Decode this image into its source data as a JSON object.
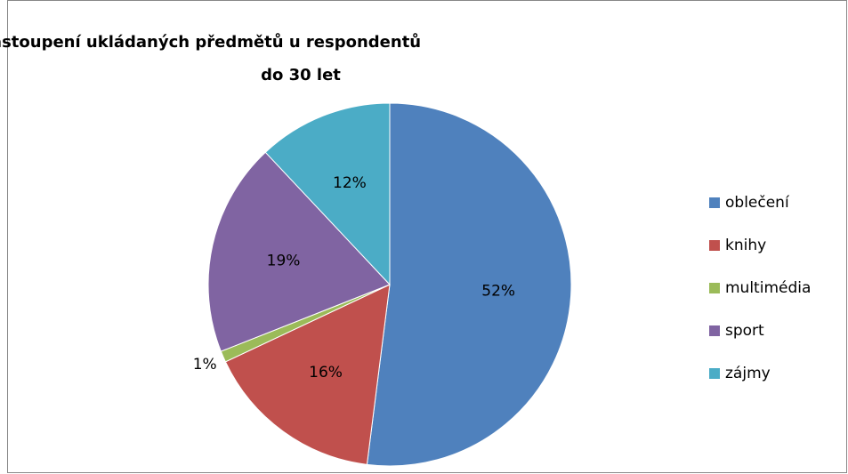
{
  "chart_data": {
    "type": "pie",
    "title": [
      "Zastoupení ukládaných předmětů u respondentů",
      "do 30 let"
    ],
    "categories": [
      "oblečení",
      "knihy",
      "multimédia",
      "sport",
      "zájmy"
    ],
    "values": [
      52,
      16,
      1,
      19,
      12
    ],
    "value_labels": [
      "52%",
      "16%",
      "1%",
      "19%",
      "12%"
    ],
    "colors": [
      "#4f81bd",
      "#c0504d",
      "#9bbb59",
      "#8064a2",
      "#4bacc6"
    ],
    "legend": "right"
  }
}
